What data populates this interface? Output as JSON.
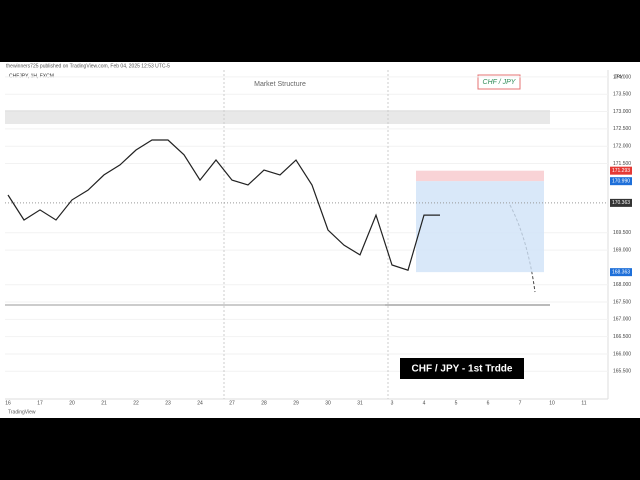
{
  "header": "thewinners725 published on TradingView.com, Feb 04, 2025 12:53 UTC-5",
  "footer": "TradingView",
  "caption": "CHF / JPY - 1st Trdde",
  "chart_data": {
    "type": "line",
    "symbol": "CHFJPY, 1H, FXCM",
    "title": "Market Structure",
    "badge": "CHF / JPY",
    "currency": "JPY",
    "categories": [
      "16",
      null,
      "17",
      null,
      "20",
      null,
      "21",
      null,
      "22",
      null,
      "23",
      null,
      "24",
      null,
      "27",
      null,
      "28",
      null,
      "29",
      null,
      "30",
      null,
      "31",
      null,
      "3",
      null,
      "4",
      null,
      "5",
      null,
      "6",
      null,
      "7",
      null,
      "10",
      null,
      "11",
      null
    ],
    "series": [
      {
        "name": "CHFJPY",
        "color": "#222222",
        "values": [
          170.59,
          169.87,
          170.16,
          169.87,
          170.45,
          170.73,
          171.17,
          171.46,
          171.89,
          172.18,
          172.18,
          171.75,
          171.02,
          171.6,
          171.02,
          170.88,
          171.31,
          171.17,
          171.6,
          170.88,
          169.58,
          169.14,
          168.86,
          170.01,
          168.57,
          168.42,
          170.01,
          170.01,
          null,
          null,
          null,
          null,
          null,
          null,
          null,
          null,
          null,
          null
        ]
      }
    ],
    "ylim": [
      164.7,
      174.2
    ],
    "yticks": [
      {
        "value": 174,
        "label": "174.000"
      },
      {
        "value": 173.5,
        "label": "173.500"
      },
      {
        "value": 173,
        "label": "173.000"
      },
      {
        "value": 172.5,
        "label": "172.500"
      },
      {
        "value": 172,
        "label": "172.000"
      },
      {
        "value": 171.5,
        "label": "171.500"
      },
      {
        "value": 169.5,
        "label": "169.500"
      },
      {
        "value": 169,
        "label": "169.000"
      },
      {
        "value": 168,
        "label": "168.000"
      },
      {
        "value": 167.5,
        "label": "167.500"
      },
      {
        "value": 167,
        "label": "167.000"
      },
      {
        "value": 166.5,
        "label": "166.500"
      },
      {
        "value": 166,
        "label": "166.000"
      },
      {
        "value": 165.5,
        "label": "165.500"
      }
    ],
    "price_labels": [
      {
        "value": 171.293,
        "color": "#e53935"
      },
      {
        "value": 170.99,
        "label": "170.990",
        "color": "#1e6fd9"
      },
      {
        "value": 170.363,
        "color": "#333333"
      },
      {
        "value": 168.363,
        "color": "#1e6fd9"
      }
    ],
    "grid": true
  }
}
